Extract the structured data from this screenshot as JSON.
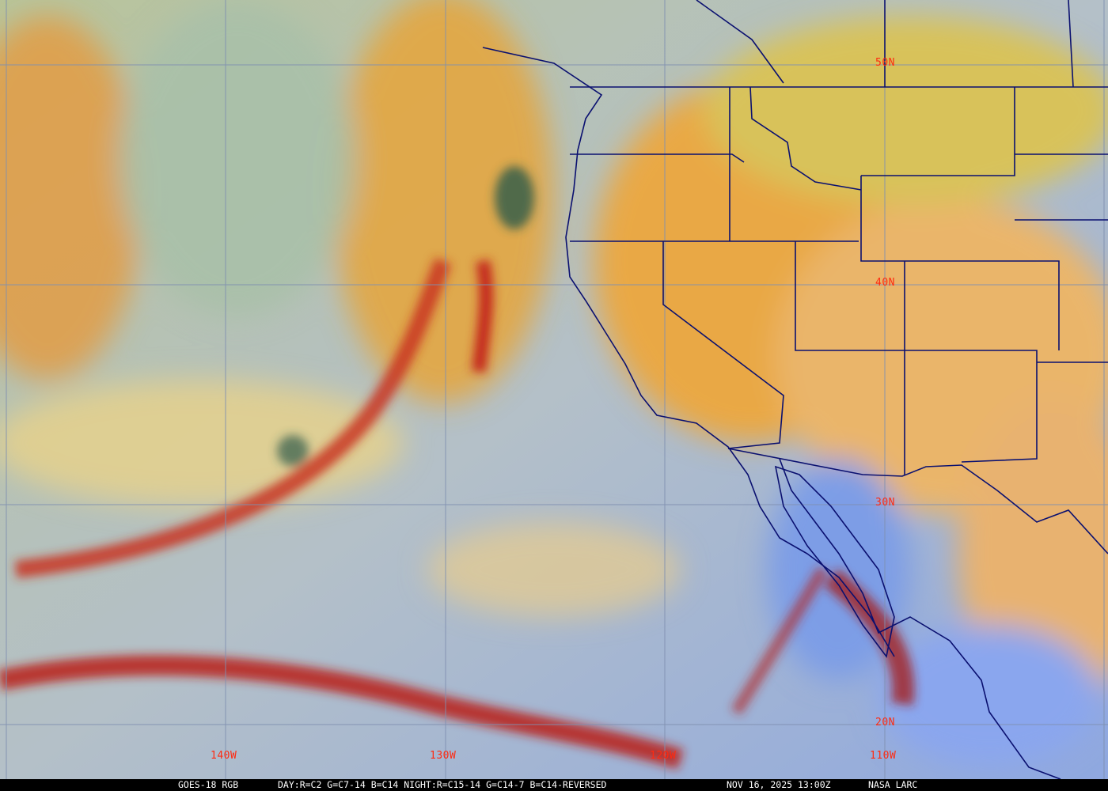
{
  "map": {
    "product": "GOES-18 RGB",
    "recipe": "DAY:R=C2 G=C7-14 B=C14 NIGHT:R=C15-14 G=C14-7 B=C14-REVERSED",
    "timestamp": "NOV 16, 2025 13:00Z",
    "credit": "NASA LARC",
    "lat_labels": [
      "50N",
      "40N",
      "30N",
      "20N"
    ],
    "lon_labels": [
      "140W",
      "130W",
      "120W",
      "110W"
    ],
    "colors": {
      "grid": "#7f8fb0",
      "borders": "#0a1070",
      "labels": "#ff2a10",
      "ocean": "#9fb3c9"
    }
  }
}
